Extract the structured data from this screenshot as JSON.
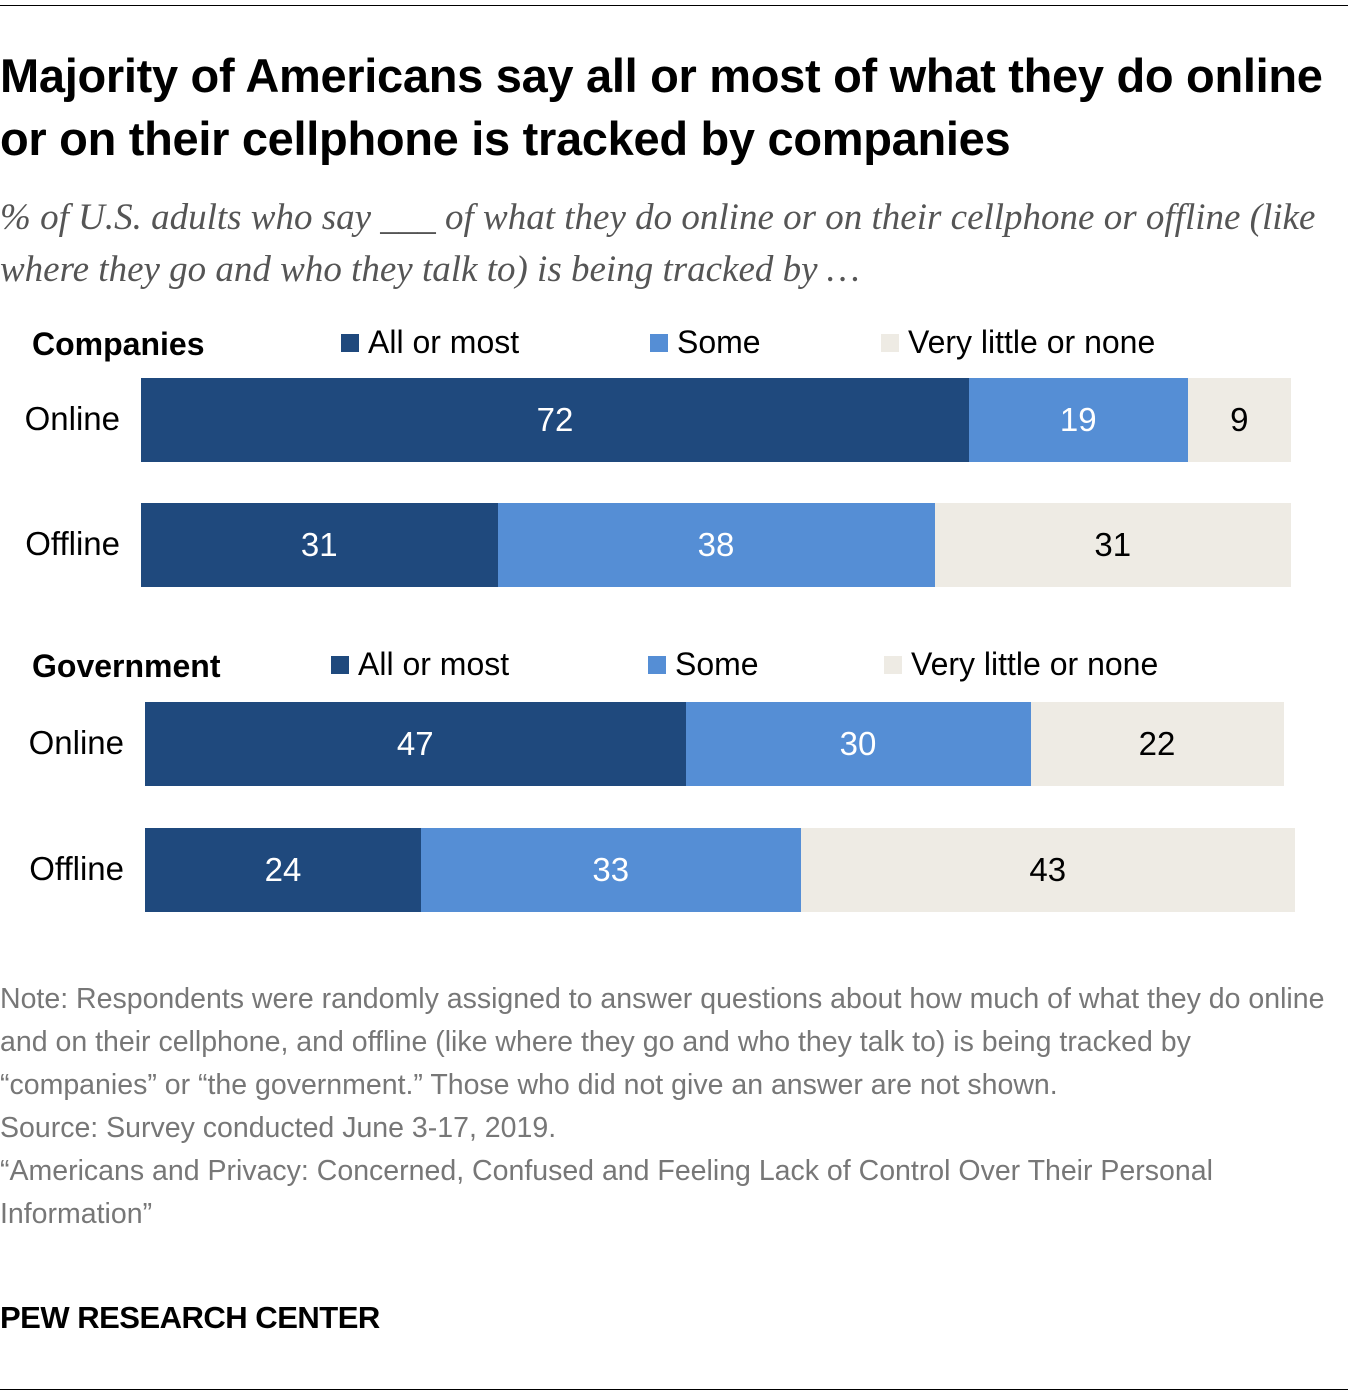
{
  "title": "Majority of Americans say all or most of what they do online or on their cellphone is tracked by companies",
  "subtitle": "% of U.S. adults who say ___ of what they do online or on their cellphone or offline (like where they go and who they talk to) is being tracked by …",
  "colors": {
    "all_or_most": "#1f497d",
    "some": "#558ed5",
    "very_little_or_none": "#eeebe4"
  },
  "chart_data": [
    {
      "type": "bar",
      "orientation": "horizontal-stacked",
      "group": "Companies",
      "legend": [
        "All or most",
        "Some",
        "Very little or none"
      ],
      "categories": [
        "Online",
        "Offline"
      ],
      "series": [
        {
          "name": "All or most",
          "values": [
            72,
            31
          ]
        },
        {
          "name": "Some",
          "values": [
            19,
            38
          ]
        },
        {
          "name": "Very little or none",
          "values": [
            9,
            31
          ]
        }
      ]
    },
    {
      "type": "bar",
      "orientation": "horizontal-stacked",
      "group": "Government",
      "legend": [
        "All or most",
        "Some",
        "Very little or none"
      ],
      "categories": [
        "Online",
        "Offline"
      ],
      "series": [
        {
          "name": "All or most",
          "values": [
            47,
            24
          ]
        },
        {
          "name": "Some",
          "values": [
            30,
            33
          ]
        },
        {
          "name": "Very little or none",
          "values": [
            22,
            43
          ]
        }
      ]
    }
  ],
  "note": "Note: Respondents were randomly assigned to answer questions about how much of what they do online and on their cellphone, and offline (like where they go and who they talk to) is being tracked by “companies” or “the government.” Those who did not give an answer are not shown.",
  "source": "Source: Survey conducted June 3-17, 2019.",
  "report": "“Americans and Privacy: Concerned, Confused and Feeling Lack of Control Over Their Personal Information”",
  "brand": "PEW RESEARCH CENTER"
}
